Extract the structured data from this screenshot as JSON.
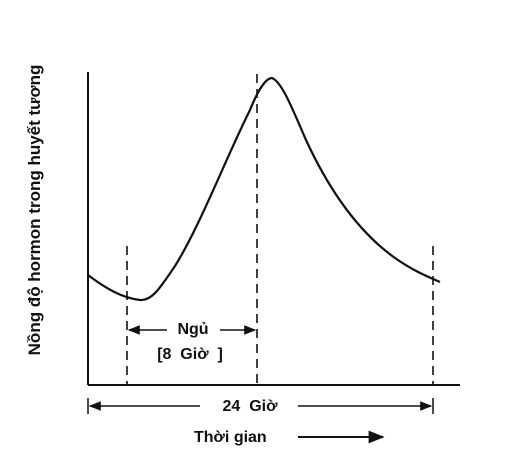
{
  "diagram": {
    "y_axis_label": "Nồng độ hormon trong huyết tương",
    "sleep_label": "Ngủ",
    "sleep_duration_label": "[8  Giờ  ]",
    "period_label": "24  Giờ",
    "x_axis_label": "Thời gian",
    "colors": {
      "ink": "#111111",
      "background": "#ffffff"
    },
    "icons": {
      "time_arrow": "arrow-right-icon"
    }
  }
}
